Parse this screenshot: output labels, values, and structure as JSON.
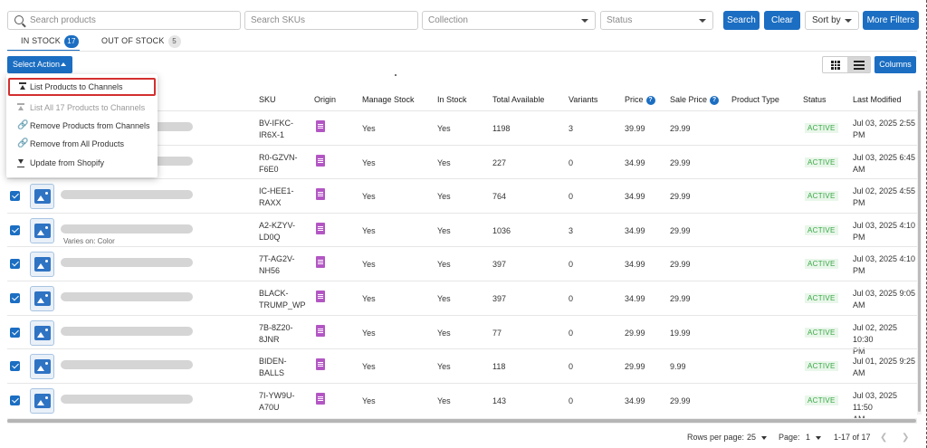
{
  "filters": {
    "search_placeholder": "Search products",
    "sku_placeholder": "Search SKUs",
    "collection_placeholder": "Collection",
    "status_placeholder": "Status",
    "search_button": "Search",
    "clear_button": "Clear",
    "sort_by": "Sort by",
    "more_filters": "More Filters"
  },
  "tabs": [
    {
      "label": "IN STOCK",
      "count": "17"
    },
    {
      "label": "OUT OF STOCK",
      "count": "5"
    }
  ],
  "toolbar": {
    "select_action": "Select Action",
    "columns": "Columns"
  },
  "menu": {
    "items": [
      {
        "label": "List Products to Channels",
        "icon": "upload-icon"
      },
      {
        "label": "List All 17 Products to Channels",
        "icon": "upload-icon"
      },
      {
        "label": "Remove Products from Channels",
        "icon": "unlink-icon"
      },
      {
        "label": "Remove from All Products",
        "icon": "unlink-icon"
      },
      {
        "label": "Update from Shopify",
        "icon": "download-icon"
      }
    ]
  },
  "columns": [
    "SKU",
    "Origin",
    "Manage Stock",
    "In Stock",
    "Total Available",
    "Variants",
    "Price",
    "Sale Price",
    "Product Type",
    "Status",
    "Last Modified"
  ],
  "rows": [
    {
      "sku": [
        "BV-IFKC-",
        "IR6X-1"
      ],
      "manage": "Yes",
      "instock": "Yes",
      "total": "1198",
      "variants": "3",
      "price": "39.99",
      "sale": "29.99",
      "status": "ACTIVE",
      "modified": [
        "Jul 03, 2025 2:55",
        "PM"
      ],
      "varies": ""
    },
    {
      "sku": [
        "R0-GZVN-",
        "F6E0"
      ],
      "manage": "Yes",
      "instock": "Yes",
      "total": "227",
      "variants": "0",
      "price": "34.99",
      "sale": "29.99",
      "status": "ACTIVE",
      "modified": [
        "Jul 03, 2025 6:45",
        "AM"
      ],
      "varies": ""
    },
    {
      "sku": [
        "IC-HEE1-",
        "RAXX"
      ],
      "manage": "Yes",
      "instock": "Yes",
      "total": "764",
      "variants": "0",
      "price": "34.99",
      "sale": "29.99",
      "status": "ACTIVE",
      "modified": [
        "Jul 02, 2025 4:55",
        "PM"
      ],
      "varies": ""
    },
    {
      "sku": [
        "A2-KZYV-",
        "LD0Q"
      ],
      "manage": "Yes",
      "instock": "Yes",
      "total": "1036",
      "variants": "3",
      "price": "34.99",
      "sale": "29.99",
      "status": "ACTIVE",
      "modified": [
        "Jul 03, 2025 4:10",
        "PM"
      ],
      "varies": "Varies on: Color"
    },
    {
      "sku": [
        "7T-AG2V-",
        "NH56"
      ],
      "manage": "Yes",
      "instock": "Yes",
      "total": "397",
      "variants": "0",
      "price": "34.99",
      "sale": "29.99",
      "status": "ACTIVE",
      "modified": [
        "Jul 03, 2025 4:10",
        "PM"
      ],
      "varies": ""
    },
    {
      "sku": [
        "BLACK-",
        "TRUMP_WP"
      ],
      "manage": "Yes",
      "instock": "Yes",
      "total": "397",
      "variants": "0",
      "price": "34.99",
      "sale": "29.99",
      "status": "ACTIVE",
      "modified": [
        "Jul 03, 2025 9:05",
        "AM"
      ],
      "varies": ""
    },
    {
      "sku": [
        "7B-8Z20-",
        "8JNR"
      ],
      "manage": "Yes",
      "instock": "Yes",
      "total": "77",
      "variants": "0",
      "price": "29.99",
      "sale": "19.99",
      "status": "ACTIVE",
      "modified": [
        "Jul 02, 2025 10:30",
        "PM"
      ],
      "varies": ""
    },
    {
      "sku": [
        "BIDEN-",
        "BALLS"
      ],
      "manage": "Yes",
      "instock": "Yes",
      "total": "118",
      "variants": "0",
      "price": "29.99",
      "sale": "9.99",
      "status": "ACTIVE",
      "modified": [
        "Jul 01, 2025 9:25",
        "AM"
      ],
      "varies": ""
    },
    {
      "sku": [
        "7I-YW9U-",
        "A70U"
      ],
      "manage": "Yes",
      "instock": "Yes",
      "total": "143",
      "variants": "0",
      "price": "34.99",
      "sale": "29.99",
      "status": "ACTIVE",
      "modified": [
        "Jul 03, 2025 11:50",
        "AM"
      ],
      "varies": ""
    }
  ],
  "pager": {
    "rows_label": "Rows per page:",
    "rows_value": "25",
    "page_label": "Page:",
    "page_value": "1",
    "range": "1-17 of 17"
  }
}
